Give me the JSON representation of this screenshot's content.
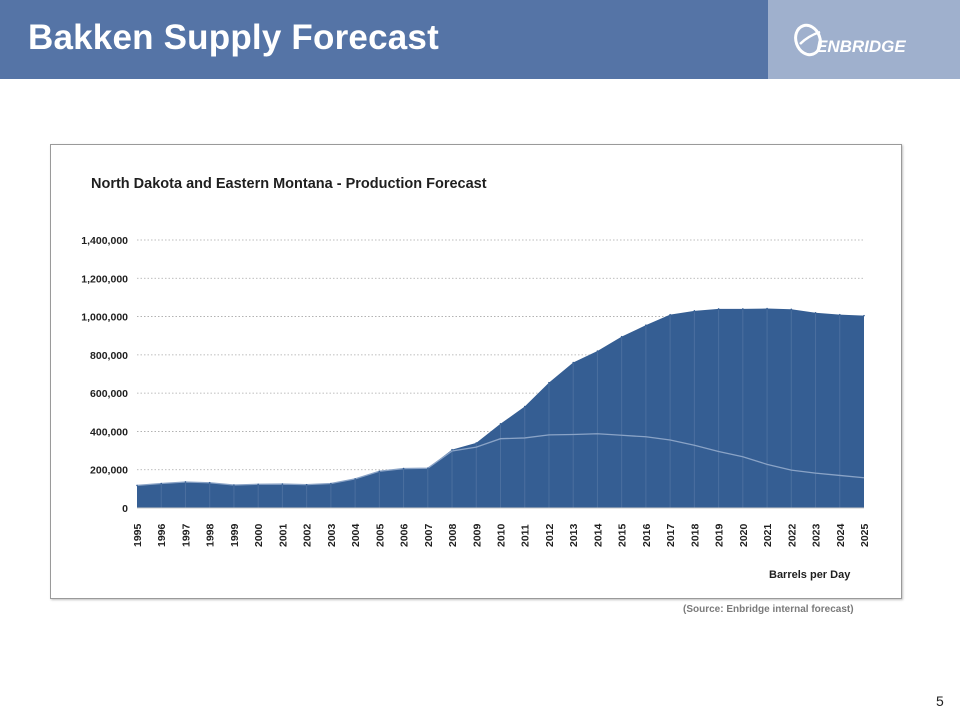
{
  "slide": {
    "title": "Bakken Supply Forecast",
    "logo_text": "ENBRIDGE",
    "source": "(Source: Enbridge internal forecast)",
    "page_number": "5"
  },
  "colors": {
    "header": "#5574a6",
    "logo_panel": "#9fb0cd",
    "area_fill": "#355e93",
    "area_line": "#8aa3c6"
  },
  "chart_data": {
    "type": "area",
    "title": "North Dakota and Eastern Montana - Production Forecast",
    "xlabel": "",
    "ylabel": "",
    "unit_label": "Barrels per Day",
    "ylim": [
      0,
      1400000
    ],
    "y_ticks": [
      0,
      200000,
      400000,
      600000,
      800000,
      1000000,
      1200000,
      1400000
    ],
    "y_tick_labels": [
      "0",
      "200,000",
      "400,000",
      "600,000",
      "800,000",
      "1,000,000",
      "1,200,000",
      "1,400,000"
    ],
    "grid": true,
    "categories": [
      "1995",
      "1996",
      "1997",
      "1998",
      "1999",
      "2000",
      "2001",
      "2002",
      "2003",
      "2004",
      "2005",
      "2006",
      "2007",
      "2008",
      "2009",
      "2010",
      "2011",
      "2012",
      "2013",
      "2014",
      "2015",
      "2016",
      "2017",
      "2018",
      "2019",
      "2020",
      "2021",
      "2022",
      "2023",
      "2024",
      "2025"
    ],
    "series": [
      {
        "values": [
          118000,
          128000,
          136000,
          132000,
          120000,
          124000,
          125000,
          122000,
          128000,
          152000,
          192000,
          206000,
          208000,
          305000,
          340000,
          440000,
          530000,
          655000,
          760000,
          820000,
          895000,
          955000,
          1010000,
          1030000,
          1040000,
          1040000,
          1042000,
          1038000,
          1020000,
          1010000,
          1005000
        ]
      },
      {
        "values": [
          118000,
          128000,
          136000,
          132000,
          120000,
          124000,
          125000,
          122000,
          128000,
          152000,
          192000,
          206000,
          208000,
          298000,
          318000,
          362000,
          366000,
          382000,
          384000,
          388000,
          380000,
          372000,
          355000,
          328000,
          295000,
          268000,
          228000,
          198000,
          182000,
          170000,
          158000
        ]
      }
    ]
  }
}
